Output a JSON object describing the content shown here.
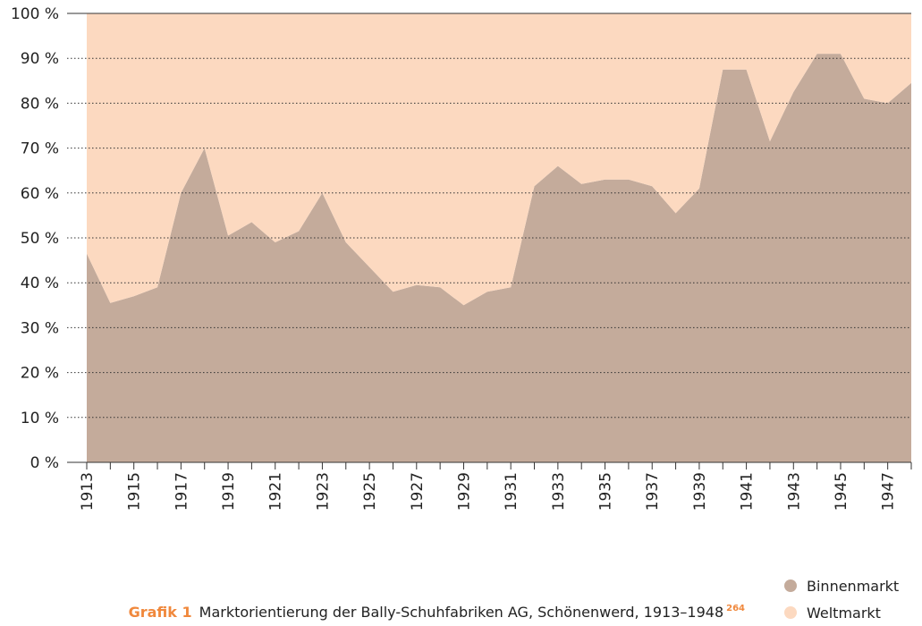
{
  "chart_data": {
    "type": "stacked_area",
    "x": [
      1913,
      1914,
      1915,
      1916,
      1917,
      1918,
      1919,
      1920,
      1921,
      1922,
      1923,
      1924,
      1925,
      1926,
      1927,
      1928,
      1929,
      1930,
      1931,
      1932,
      1933,
      1934,
      1935,
      1936,
      1937,
      1938,
      1939,
      1940,
      1941,
      1942,
      1943,
      1944,
      1945,
      1946,
      1947,
      1948
    ],
    "series": [
      {
        "name": "Binnenmarkt",
        "color": "#c4ab9b",
        "values": [
          46.5,
          35.5,
          37,
          39,
          60,
          70,
          50.5,
          53.5,
          49,
          51.5,
          60,
          49,
          43.5,
          38,
          39.5,
          39,
          35,
          38,
          39,
          61.5,
          66,
          62,
          63,
          63,
          61.5,
          55.5,
          61,
          87.5,
          87.5,
          71.5,
          82.5,
          91,
          91,
          81,
          80,
          84.5
        ]
      },
      {
        "name": "Weltmarkt",
        "color": "#fcd9c0",
        "values": [
          53.5,
          64.5,
          63,
          61,
          40,
          30,
          49.5,
          46.5,
          51,
          48.5,
          40,
          51,
          56.5,
          62,
          60.5,
          61,
          65,
          62,
          61,
          38.5,
          34,
          38,
          37,
          37,
          38.5,
          44.5,
          39,
          12.5,
          12.5,
          28.5,
          17.5,
          9,
          9,
          19,
          20,
          15.5
        ]
      }
    ],
    "xlim": [
      1913,
      1948
    ],
    "xticks": [
      1913,
      1915,
      1917,
      1919,
      1921,
      1923,
      1925,
      1927,
      1929,
      1931,
      1933,
      1935,
      1937,
      1939,
      1941,
      1943,
      1945,
      1947
    ],
    "ylim": [
      0,
      100
    ],
    "yticks": [
      {
        "value": 0,
        "label": "0 %"
      },
      {
        "value": 10,
        "label": "10 %"
      },
      {
        "value": 20,
        "label": "20 %"
      },
      {
        "value": 30,
        "label": "30 %"
      },
      {
        "value": 40,
        "label": "40 %"
      },
      {
        "value": 50,
        "label": "50 %"
      },
      {
        "value": 60,
        "label": "60 %"
      },
      {
        "value": 70,
        "label": "70 %"
      },
      {
        "value": 80,
        "label": "80 %"
      },
      {
        "value": 90,
        "label": "90 %"
      },
      {
        "value": 100,
        "label": "100 %"
      }
    ],
    "grid": true,
    "legend": "bottom-right",
    "caption_label": "Grafik 1",
    "caption": "Marktorientierung der Bally-Schuhfabriken AG, Schönenwerd, 1913–1948",
    "footnote": "264"
  }
}
